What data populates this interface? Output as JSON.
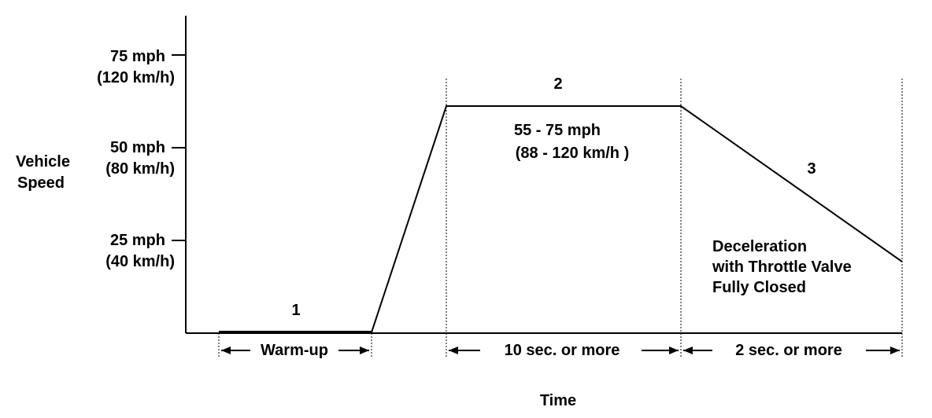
{
  "y_axis": {
    "title_line1": "Vehicle",
    "title_line2": "Speed",
    "ticks": [
      {
        "mph": "75 mph",
        "kmh": "(120 km/h)"
      },
      {
        "mph": "50 mph",
        "kmh": "(80 km/h)"
      },
      {
        "mph": "25 mph",
        "kmh": "(40 km/h)"
      }
    ]
  },
  "x_axis": {
    "title": "Time"
  },
  "phases": {
    "p1": {
      "number": "1",
      "duration": "Warm-up"
    },
    "p2": {
      "number": "2",
      "speed_line1": "55 - 75 mph",
      "speed_line2": "(88 - 120 km/h )",
      "duration": "10 sec. or more"
    },
    "p3": {
      "number": "3",
      "note_line1": "Deceleration",
      "note_line2": "with Throttle Valve",
      "note_line3": "Fully Closed",
      "duration": "2 sec. or more"
    }
  }
}
